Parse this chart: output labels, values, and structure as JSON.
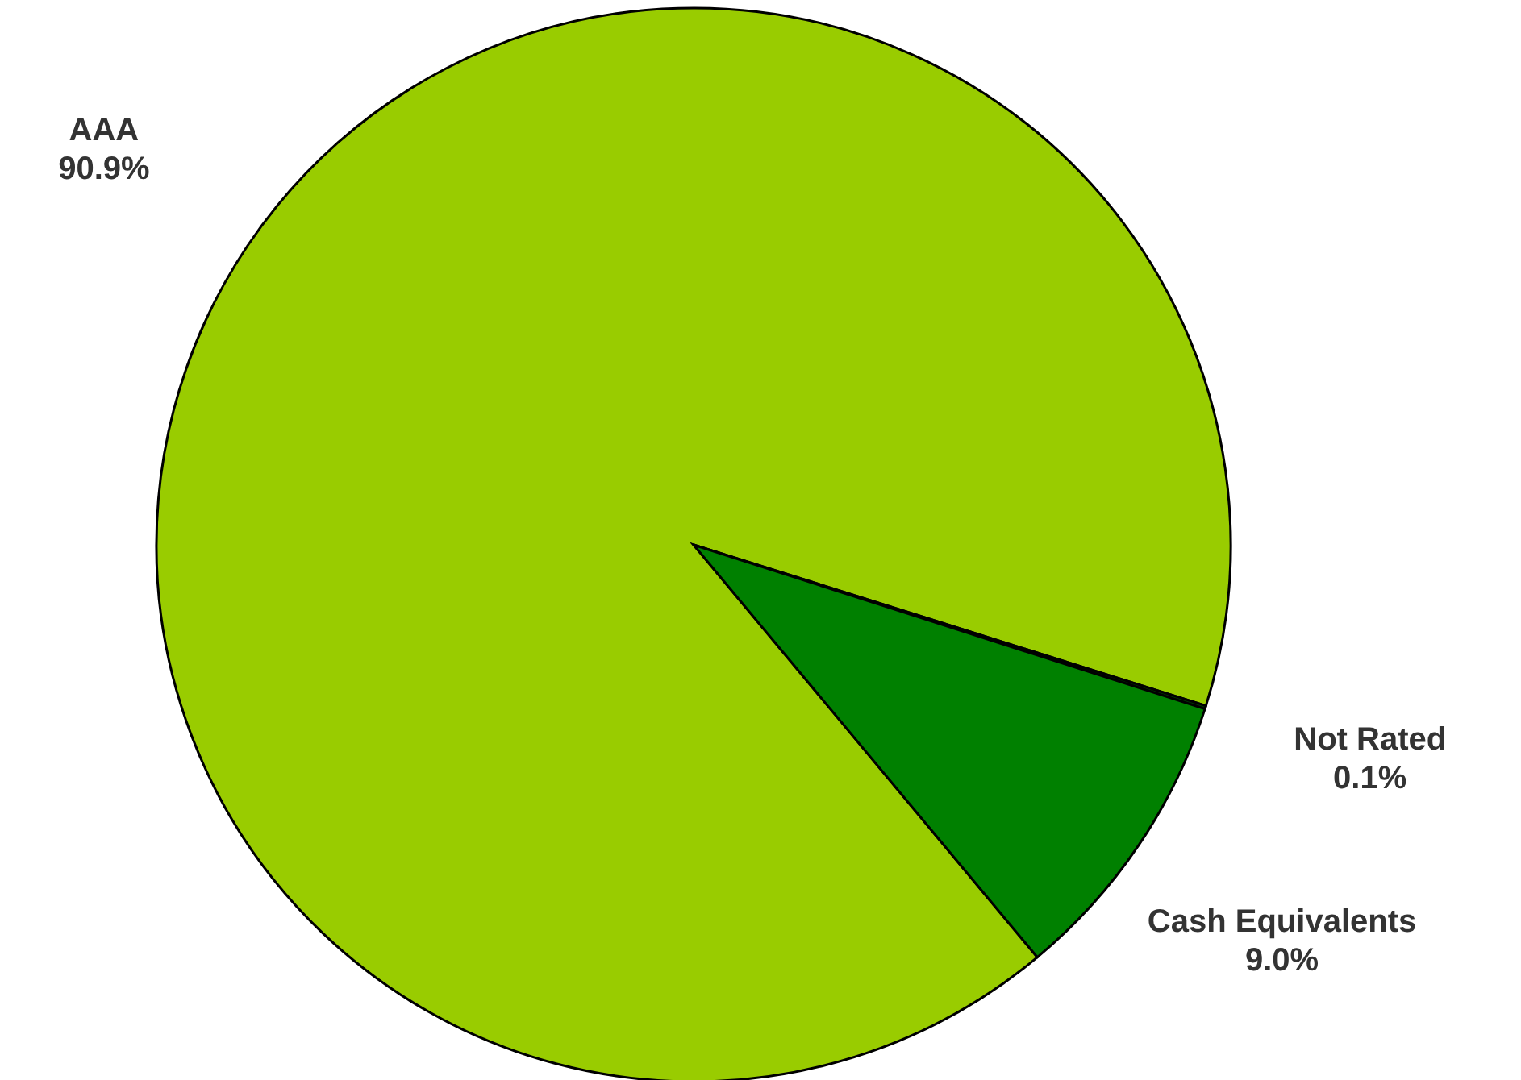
{
  "chart_data": {
    "type": "pie",
    "categories": [
      "AAA",
      "Not Rated",
      "Cash Equivalents"
    ],
    "values": [
      90.9,
      0.1,
      9.0
    ],
    "colors": [
      "#99cc00",
      "#003300",
      "#008000"
    ],
    "value_labels": [
      "90.9%",
      "0.1%",
      "9.0%"
    ]
  }
}
